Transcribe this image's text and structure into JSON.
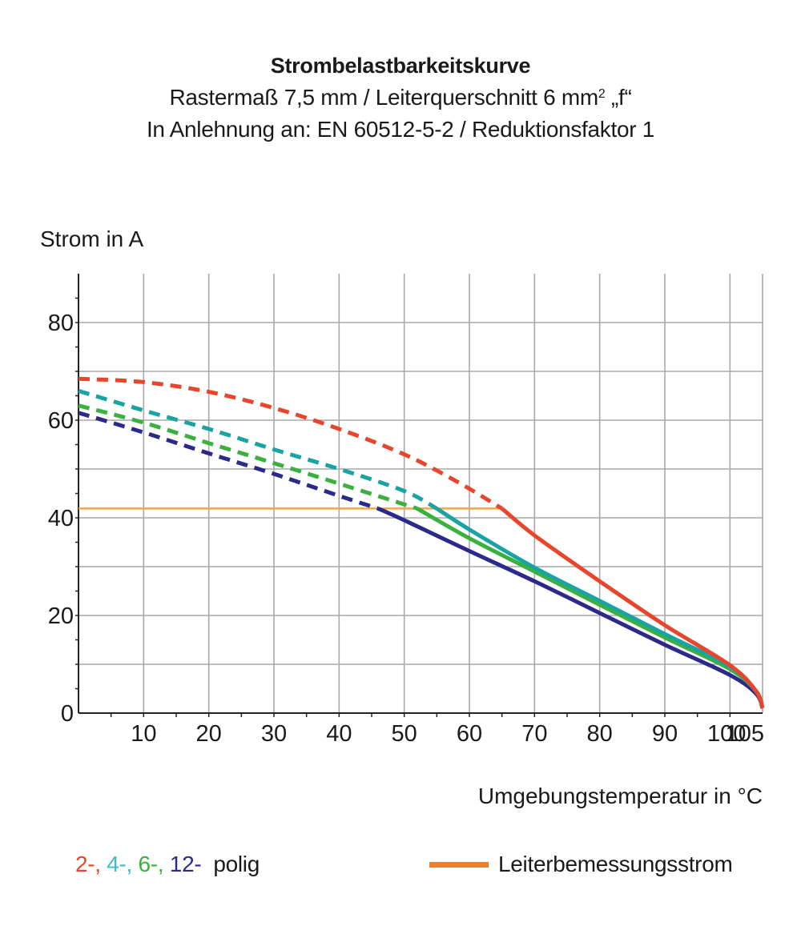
{
  "header": {
    "title": "Strombelastbarkeitskurve",
    "subtitle_1_text": "Rastermaß 7,5 mm / Leiterquerschnitt 6 mm",
    "subtitle_1_sup": "2",
    "subtitle_1_tail": " „f“",
    "subtitle_2": "In Anlehnung an: EN 60512-5-2 / Reduktionsfaktor 1"
  },
  "chart_data": {
    "type": "line",
    "ylabel": "Strom in A",
    "xlabel": "Umgebungstemperatur in °C",
    "xlim": [
      0,
      105
    ],
    "ylim": [
      0,
      90
    ],
    "x_ticks": [
      10,
      20,
      30,
      40,
      50,
      60,
      70,
      80,
      90,
      100,
      105
    ],
    "x_tick_labels": [
      "10",
      "20",
      "30",
      "40",
      "50",
      "60",
      "70",
      "80",
      "90",
      "100",
      "105"
    ],
    "y_ticks": [
      0,
      20,
      40,
      60,
      80
    ],
    "y_tick_labels": [
      "0",
      "20",
      "40",
      "60",
      "80"
    ],
    "grid_x_step": 10,
    "grid_y_step": 10,
    "grid": true,
    "series": [
      {
        "name": "2-",
        "color": "#e8452d",
        "dashed_points": [
          [
            0,
            68.5
          ],
          [
            10,
            67.8
          ],
          [
            20,
            65.8
          ],
          [
            30,
            62.5
          ],
          [
            40,
            58.2
          ],
          [
            50,
            53.0
          ],
          [
            58,
            47.5
          ],
          [
            65,
            41.9
          ]
        ],
        "solid_points": [
          [
            65,
            41.9
          ],
          [
            70,
            36.4
          ],
          [
            80,
            27.0
          ],
          [
            90,
            18.0
          ],
          [
            100,
            9.8
          ],
          [
            104,
            4.5
          ],
          [
            105,
            1.0
          ]
        ]
      },
      {
        "name": "4-",
        "color": "#1aa3a3",
        "dashed_points": [
          [
            0,
            66.0
          ],
          [
            10,
            62.0
          ],
          [
            20,
            58.2
          ],
          [
            30,
            54.0
          ],
          [
            40,
            50.0
          ],
          [
            50,
            45.5
          ],
          [
            55,
            41.9
          ]
        ],
        "solid_points": [
          [
            55,
            41.9
          ],
          [
            60,
            37.6
          ],
          [
            70,
            29.8
          ],
          [
            80,
            23.0
          ],
          [
            90,
            16.2
          ],
          [
            100,
            9.5
          ],
          [
            104,
            4.5
          ],
          [
            105,
            1.0
          ]
        ]
      },
      {
        "name": "6-",
        "color": "#3ab03e",
        "dashed_points": [
          [
            0,
            63.0
          ],
          [
            10,
            59.5
          ],
          [
            20,
            55.3
          ],
          [
            30,
            51.2
          ],
          [
            40,
            47.0
          ],
          [
            52,
            41.9
          ]
        ],
        "solid_points": [
          [
            52,
            41.9
          ],
          [
            60,
            35.8
          ],
          [
            70,
            29.0
          ],
          [
            80,
            22.2
          ],
          [
            90,
            15.5
          ],
          [
            100,
            9.0
          ],
          [
            104,
            4.5
          ],
          [
            105,
            1.0
          ]
        ]
      },
      {
        "name": "12-",
        "color": "#2b2a8a",
        "dashed_points": [
          [
            0,
            61.5
          ],
          [
            10,
            57.5
          ],
          [
            20,
            53.2
          ],
          [
            30,
            49.0
          ],
          [
            40,
            44.5
          ],
          [
            46,
            41.9
          ]
        ],
        "solid_points": [
          [
            46,
            41.9
          ],
          [
            50,
            39.5
          ],
          [
            60,
            33.2
          ],
          [
            70,
            27.0
          ],
          [
            80,
            20.5
          ],
          [
            90,
            14.0
          ],
          [
            100,
            7.8
          ],
          [
            104,
            4.0
          ],
          [
            105,
            1.0
          ]
        ]
      }
    ],
    "reference_line": {
      "name": "Leiterbemessungsstrom",
      "color": "#f0a64a",
      "legend_color": "#ef7d2b",
      "y": 41.9,
      "x_range": [
        0,
        65
      ]
    }
  },
  "legend": {
    "pole_labels": [
      {
        "text": "2-,",
        "color": "#e8452d"
      },
      {
        "text": " 4-,",
        "color": "#3bbcc6"
      },
      {
        "text": " 6-,",
        "color": "#3ab03e"
      },
      {
        "text": " 12-",
        "color": "#2b2a8a"
      }
    ],
    "pole_suffix": "  polig",
    "reference_label": "Leiterbemessungsstrom"
  }
}
